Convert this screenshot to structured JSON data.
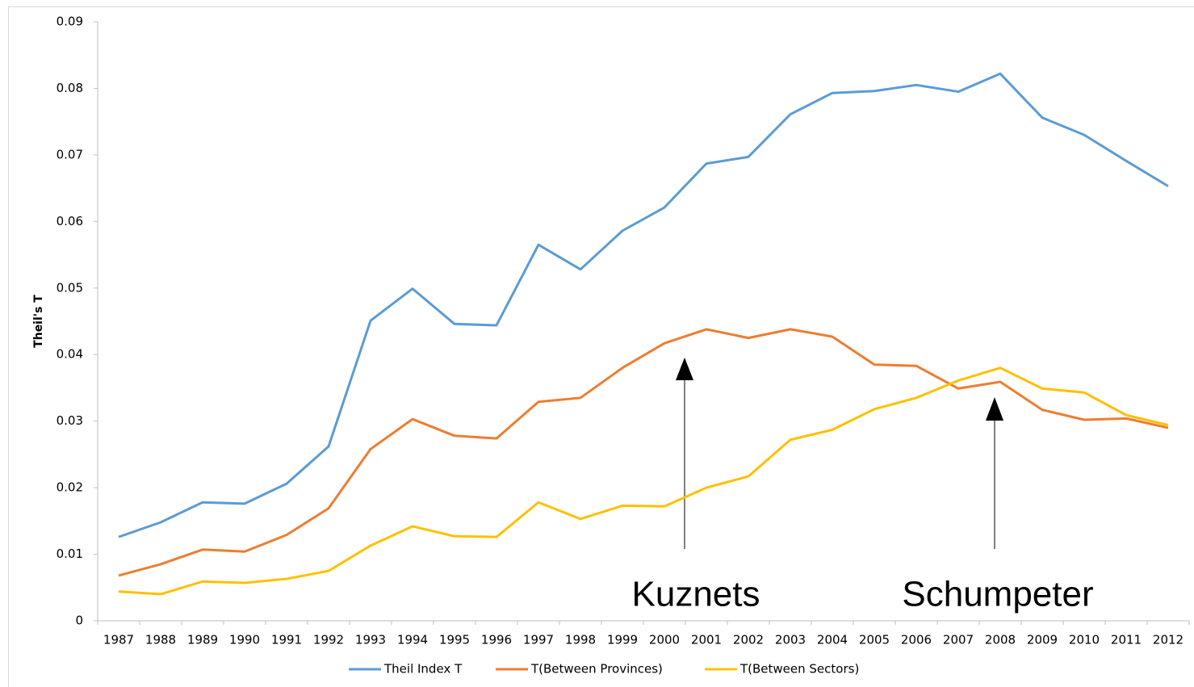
{
  "chart_data": {
    "type": "line",
    "y_label": "Theil's T",
    "annotations": [
      "Kuznets",
      "Schumpeter"
    ],
    "categories": [
      "1987",
      "1988",
      "1989",
      "1990",
      "1991",
      "1992",
      "1993",
      "1994",
      "1995",
      "1996",
      "1997",
      "1998",
      "1999",
      "2000",
      "2001",
      "2002",
      "2003",
      "2004",
      "2005",
      "2006",
      "2007",
      "2008",
      "2009",
      "2010",
      "2011",
      "2012"
    ],
    "series": [
      {
        "name": "Theil Index T",
        "color": "#5b9bd5",
        "values": [
          0.0126,
          0.0148,
          0.0178,
          0.0176,
          0.0206,
          0.0262,
          0.0451,
          0.0499,
          0.0446,
          0.0444,
          0.0565,
          0.0528,
          0.0586,
          0.0621,
          0.0687,
          0.0697,
          0.0761,
          0.0793,
          0.0796,
          0.0805,
          0.0795,
          0.0822,
          0.0756,
          0.073,
          0.0691,
          0.0653
        ]
      },
      {
        "name": "T(Between Provinces)",
        "color": "#ed7d31",
        "values": [
          0.0068,
          0.0085,
          0.0107,
          0.0104,
          0.0129,
          0.0169,
          0.0258,
          0.0303,
          0.0278,
          0.0274,
          0.0329,
          0.0335,
          0.038,
          0.0417,
          0.0438,
          0.0425,
          0.0438,
          0.0427,
          0.0385,
          0.0383,
          0.0349,
          0.0359,
          0.0317,
          0.0302,
          0.0304,
          0.029
        ]
      },
      {
        "name": "T(Between Sectors)",
        "color": "#ffc000",
        "values": [
          0.0044,
          0.004,
          0.0059,
          0.0057,
          0.0063,
          0.0075,
          0.0113,
          0.0142,
          0.0127,
          0.0126,
          0.0178,
          0.0153,
          0.0173,
          0.0172,
          0.02,
          0.0217,
          0.0272,
          0.0287,
          0.0318,
          0.0335,
          0.0361,
          0.038,
          0.0349,
          0.0343,
          0.0309,
          0.0294
        ]
      }
    ],
    "ylim": [
      0,
      0.09
    ],
    "yticks": [
      0,
      0.01,
      0.02,
      0.03,
      0.04,
      0.05,
      0.06,
      0.07,
      0.08,
      0.09
    ],
    "grid": false,
    "legend": "bottom"
  }
}
